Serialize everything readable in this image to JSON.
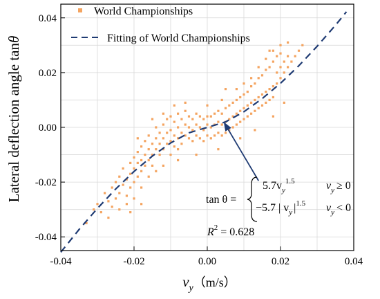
{
  "chart_data": {
    "type": "scatter",
    "title": "",
    "xlabel": {
      "symbol": "v",
      "subscript": "y",
      "unit": "（m/s）"
    },
    "ylabel": {
      "prefix": "Lateral deflection angle tan",
      "symbol": "θ"
    },
    "xlim": [
      -0.04,
      0.04
    ],
    "ylim": [
      -0.045,
      0.045
    ],
    "x_ticks": [
      "-0.04",
      "-0.02",
      "0.00",
      "0.02",
      "0.04"
    ],
    "y_ticks": [
      "-0.04",
      "-0.02",
      "0.00",
      "0.02",
      "0.04"
    ],
    "grid": true,
    "legend_position": "top-left",
    "series": [
      {
        "name": "World Championships",
        "kind": "scatter",
        "color": "#f4a460",
        "marker": "small-square",
        "points": [
          [
            -0.033,
            -0.035
          ],
          [
            -0.031,
            -0.03
          ],
          [
            -0.03,
            -0.028
          ],
          [
            -0.029,
            -0.031
          ],
          [
            -0.028,
            -0.024
          ],
          [
            -0.027,
            -0.027
          ],
          [
            -0.026,
            -0.022
          ],
          [
            -0.026,
            -0.029
          ],
          [
            -0.025,
            -0.02
          ],
          [
            -0.025,
            -0.026
          ],
          [
            -0.024,
            -0.018
          ],
          [
            -0.024,
            -0.024
          ],
          [
            -0.023,
            -0.021
          ],
          [
            -0.023,
            -0.015
          ],
          [
            -0.022,
            -0.019
          ],
          [
            -0.022,
            -0.025
          ],
          [
            -0.021,
            -0.013
          ],
          [
            -0.021,
            -0.017
          ],
          [
            -0.021,
            -0.022
          ],
          [
            -0.02,
            -0.011
          ],
          [
            -0.02,
            -0.015
          ],
          [
            -0.02,
            -0.02
          ],
          [
            -0.019,
            -0.013
          ],
          [
            -0.019,
            -0.009
          ],
          [
            -0.019,
            -0.018
          ],
          [
            -0.018,
            -0.012
          ],
          [
            -0.018,
            -0.016
          ],
          [
            -0.018,
            -0.007
          ],
          [
            -0.017,
            -0.01
          ],
          [
            -0.017,
            -0.014
          ],
          [
            -0.017,
            -0.005
          ],
          [
            -0.016,
            -0.008
          ],
          [
            -0.016,
            -0.012
          ],
          [
            -0.016,
            -0.003
          ],
          [
            -0.015,
            -0.006
          ],
          [
            -0.015,
            -0.01
          ],
          [
            -0.015,
            -0.014
          ],
          [
            -0.014,
            -0.004
          ],
          [
            -0.014,
            -0.008
          ],
          [
            -0.014,
            0.0
          ],
          [
            -0.013,
            -0.006
          ],
          [
            -0.013,
            -0.002
          ],
          [
            -0.013,
            -0.01
          ],
          [
            -0.012,
            -0.004
          ],
          [
            -0.012,
            0.001
          ],
          [
            -0.012,
            -0.008
          ],
          [
            -0.011,
            -0.002
          ],
          [
            -0.011,
            -0.006
          ],
          [
            -0.011,
            0.003
          ],
          [
            -0.01,
            -0.001
          ],
          [
            -0.01,
            -0.005
          ],
          [
            -0.01,
            0.004
          ],
          [
            -0.009,
            -0.003
          ],
          [
            -0.009,
            0.002
          ],
          [
            -0.009,
            -0.007
          ],
          [
            -0.008,
            0.0
          ],
          [
            -0.008,
            -0.004
          ],
          [
            -0.008,
            0.005
          ],
          [
            -0.007,
            -0.002
          ],
          [
            -0.007,
            0.003
          ],
          [
            -0.007,
            -0.006
          ],
          [
            -0.006,
            0.001
          ],
          [
            -0.006,
            -0.003
          ],
          [
            -0.006,
            0.006
          ],
          [
            -0.005,
            0.0
          ],
          [
            -0.005,
            -0.004
          ],
          [
            -0.005,
            0.004
          ],
          [
            -0.004,
            -0.001
          ],
          [
            -0.004,
            0.003
          ],
          [
            -0.004,
            -0.005
          ],
          [
            -0.003,
            0.001
          ],
          [
            -0.003,
            -0.003
          ],
          [
            -0.003,
            0.005
          ],
          [
            -0.002,
            0.0
          ],
          [
            -0.002,
            -0.004
          ],
          [
            -0.002,
            0.004
          ],
          [
            -0.001,
            -0.001
          ],
          [
            -0.001,
            0.003
          ],
          [
            -0.001,
            -0.005
          ],
          [
            0.0,
            0.001
          ],
          [
            0.0,
            -0.003
          ],
          [
            0.0,
            0.004
          ],
          [
            0.001,
            0.0
          ],
          [
            0.001,
            -0.004
          ],
          [
            0.001,
            0.004
          ],
          [
            0.002,
            0.001
          ],
          [
            0.002,
            -0.003
          ],
          [
            0.002,
            0.005
          ],
          [
            0.003,
            0.002
          ],
          [
            0.003,
            -0.002
          ],
          [
            0.003,
            0.006
          ],
          [
            0.004,
            0.001
          ],
          [
            0.004,
            -0.003
          ],
          [
            0.004,
            0.005
          ],
          [
            0.005,
            0.002
          ],
          [
            0.005,
            -0.002
          ],
          [
            0.005,
            0.007
          ],
          [
            0.006,
            0.003
          ],
          [
            0.006,
            -0.001
          ],
          [
            0.006,
            0.008
          ],
          [
            0.007,
            0.004
          ],
          [
            0.007,
            0.0
          ],
          [
            0.007,
            0.009
          ],
          [
            0.008,
            0.005
          ],
          [
            0.008,
            0.001
          ],
          [
            0.008,
            0.01
          ],
          [
            0.009,
            0.006
          ],
          [
            0.009,
            0.002
          ],
          [
            0.009,
            0.011
          ],
          [
            0.01,
            0.007
          ],
          [
            0.01,
            0.003
          ],
          [
            0.01,
            0.012
          ],
          [
            0.011,
            0.008
          ],
          [
            0.011,
            0.004
          ],
          [
            0.011,
            0.013
          ],
          [
            0.012,
            0.009
          ],
          [
            0.012,
            0.005
          ],
          [
            0.012,
            0.015
          ],
          [
            0.013,
            0.01
          ],
          [
            0.013,
            0.006
          ],
          [
            0.013,
            0.016
          ],
          [
            0.014,
            0.011
          ],
          [
            0.014,
            0.007
          ],
          [
            0.014,
            0.018
          ],
          [
            0.015,
            0.012
          ],
          [
            0.015,
            0.008
          ],
          [
            0.015,
            0.019
          ],
          [
            0.016,
            0.013
          ],
          [
            0.016,
            0.009
          ],
          [
            0.016,
            0.021
          ],
          [
            0.017,
            0.014
          ],
          [
            0.017,
            0.01
          ],
          [
            0.017,
            0.022
          ],
          [
            0.018,
            0.015
          ],
          [
            0.018,
            0.011
          ],
          [
            0.018,
            0.024
          ],
          [
            0.019,
            0.016
          ],
          [
            0.019,
            0.02
          ],
          [
            0.019,
            0.026
          ],
          [
            0.02,
            0.018
          ],
          [
            0.02,
            0.022
          ],
          [
            0.02,
            0.027
          ],
          [
            0.021,
            0.02
          ],
          [
            0.021,
            0.024
          ],
          [
            0.022,
            0.022
          ],
          [
            0.022,
            0.026
          ],
          [
            0.023,
            0.024
          ],
          [
            0.024,
            0.026
          ],
          [
            0.025,
            0.028
          ],
          [
            0.026,
            0.03
          ],
          [
            -0.024,
            -0.03
          ],
          [
            -0.022,
            -0.028
          ],
          [
            -0.02,
            -0.026
          ],
          [
            -0.018,
            -0.022
          ],
          [
            -0.016,
            -0.018
          ],
          [
            -0.014,
            -0.016
          ],
          [
            -0.012,
            -0.014
          ],
          [
            -0.01,
            -0.01
          ],
          [
            -0.008,
            -0.008
          ],
          [
            0.008,
            0.014
          ],
          [
            0.01,
            0.016
          ],
          [
            0.012,
            0.018
          ],
          [
            0.014,
            0.022
          ],
          [
            0.016,
            0.025
          ],
          [
            0.018,
            0.028
          ],
          [
            0.02,
            0.03
          ],
          [
            -0.021,
            -0.031
          ],
          [
            0.022,
            0.031
          ],
          [
            -0.015,
            0.003
          ],
          [
            -0.012,
            0.005
          ],
          [
            -0.006,
            0.009
          ],
          [
            0.0,
            0.008
          ],
          [
            0.004,
            0.01
          ],
          [
            0.009,
            -0.004
          ],
          [
            0.013,
            -0.001
          ],
          [
            0.018,
            0.004
          ],
          [
            0.021,
            0.009
          ],
          [
            0.017,
            0.028
          ],
          [
            -0.003,
            -0.01
          ],
          [
            -0.008,
            -0.012
          ],
          [
            -0.018,
            -0.028
          ],
          [
            -0.027,
            -0.033
          ],
          [
            -0.019,
            -0.004
          ],
          [
            0.005,
            0.014
          ],
          [
            0.003,
            -0.008
          ],
          [
            -0.009,
            0.008
          ]
        ]
      },
      {
        "name": "Fitting of World Championships",
        "kind": "line",
        "style": "dashed",
        "color": "#1f3b73",
        "x": [
          -0.04,
          -0.035,
          -0.03,
          -0.025,
          -0.02,
          -0.015,
          -0.01,
          -0.005,
          0.0,
          0.005,
          0.01,
          0.015,
          0.02,
          0.025,
          0.03,
          0.035,
          0.038
        ],
        "y": [
          -0.0456,
          -0.0373,
          -0.0296,
          -0.0225,
          -0.0161,
          -0.0105,
          -0.0057,
          -0.002,
          0.0,
          0.002,
          0.0057,
          0.0105,
          0.0161,
          0.0225,
          0.0296,
          0.0373,
          0.0422
        ]
      }
    ],
    "annotation": {
      "arrow_from": [
        0.014,
        -0.0195
      ],
      "arrow_to": [
        0.0045,
        0.002
      ],
      "equation_prefix": "tan θ =",
      "case1_formula": "5.7v",
      "case1_sub": "y",
      "case1_sup": "1.5",
      "case1_condition": "v",
      "case1_condition_sub": "y",
      "case1_condition_rel": "≥ 0",
      "case2_formula": "−5.7 | v",
      "case2_sub": "y",
      "case2_close": "|",
      "case2_sup": "1.5",
      "case2_condition": "v",
      "case2_condition_sub": "y",
      "case2_condition_rel": "< 0",
      "r2_label": "R",
      "r2_sup": "2",
      "r2_value": " = 0.628"
    }
  }
}
